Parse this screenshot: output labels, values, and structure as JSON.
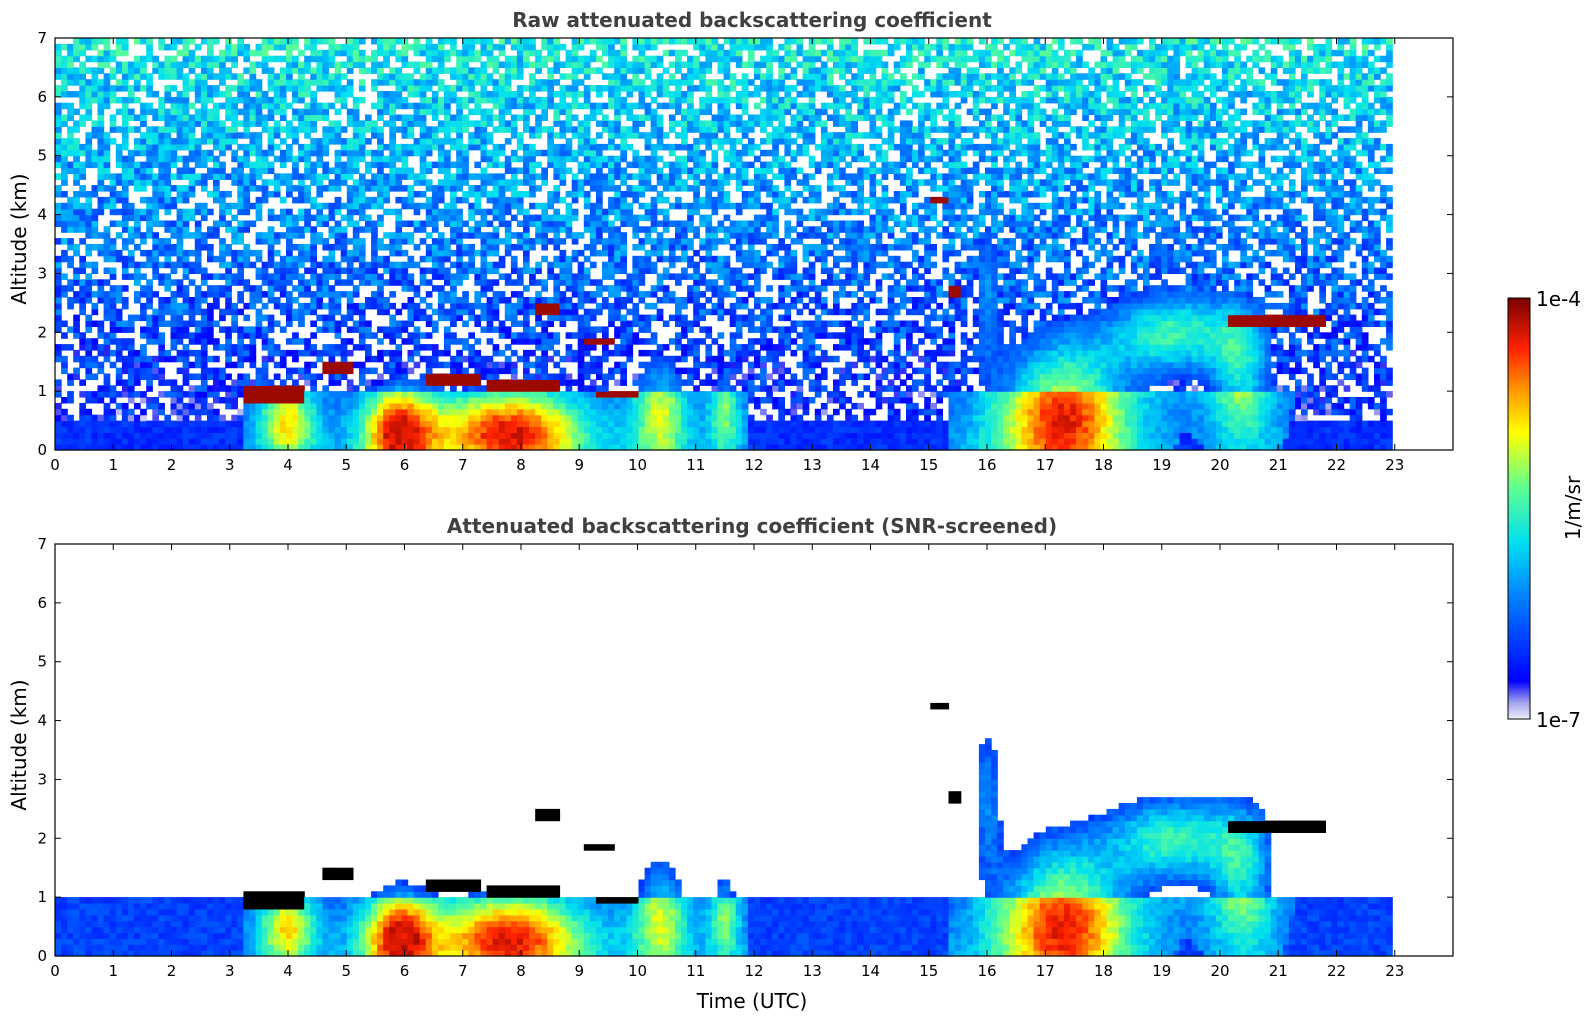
{
  "chart_data": [
    {
      "type": "heatmap",
      "title": "Raw attenuated backscattering coefficient",
      "xlabel": "",
      "ylabel": "Altitude (km)",
      "xlim": [
        0,
        24
      ],
      "ylim": [
        0,
        7
      ],
      "x_ticks": [
        0,
        1,
        2,
        3,
        4,
        5,
        6,
        7,
        8,
        9,
        10,
        11,
        12,
        13,
        14,
        15,
        16,
        17,
        18,
        19,
        20,
        21,
        22,
        23
      ],
      "y_ticks": [
        0,
        1,
        2,
        3,
        4,
        5,
        6,
        7
      ],
      "data_extent_hours": [
        0,
        22.95
      ],
      "screened": false,
      "features": [
        {
          "kind": "cloud",
          "x": [
            3.2,
            4.3
          ],
          "y": [
            0.85,
            1.05
          ],
          "value": 0.0001
        },
        {
          "kind": "cloud",
          "x": [
            4.6,
            5.1
          ],
          "y": [
            1.3,
            1.5
          ],
          "value": 0.0001
        },
        {
          "kind": "cloud",
          "x": [
            6.4,
            7.3
          ],
          "y": [
            1.1,
            1.25
          ],
          "value": 0.0001
        },
        {
          "kind": "cloud",
          "x": [
            7.4,
            8.7
          ],
          "y": [
            1.05,
            1.15
          ],
          "value": 0.0001
        },
        {
          "kind": "cloud",
          "x": [
            8.2,
            8.7
          ],
          "y": [
            2.3,
            2.5
          ],
          "value": 0.0001
        },
        {
          "kind": "cloud",
          "x": [
            9.1,
            9.6
          ],
          "y": [
            1.8,
            1.9
          ],
          "value": 0.0001
        },
        {
          "kind": "cloud",
          "x": [
            9.3,
            10.0
          ],
          "y": [
            0.9,
            1.0
          ],
          "value": 0.0001
        },
        {
          "kind": "cloud",
          "x": [
            15.0,
            15.3
          ],
          "y": [
            4.2,
            4.3
          ],
          "value": 0.0001
        },
        {
          "kind": "cloud",
          "x": [
            15.35,
            15.5
          ],
          "y": [
            2.6,
            2.8
          ],
          "value": 0.0001
        },
        {
          "kind": "cloud",
          "x": [
            20.1,
            21.8
          ],
          "y": [
            2.1,
            2.3
          ],
          "value": 0.0001
        },
        {
          "kind": "aerosol",
          "x": [
            16.0,
            18.5
          ],
          "y": [
            0.0,
            2.2
          ],
          "value": 5e-06
        },
        {
          "kind": "aerosol",
          "x": [
            18.5,
            20.2
          ],
          "y": [
            1.3,
            2.5
          ],
          "value": 8e-06
        }
      ]
    },
    {
      "type": "heatmap",
      "title": "Attenuated backscattering coefficient (SNR-screened)",
      "xlabel": "Time (UTC)",
      "ylabel": "Altitude (km)",
      "xlim": [
        0,
        24
      ],
      "ylim": [
        0,
        7
      ],
      "x_ticks": [
        0,
        1,
        2,
        3,
        4,
        5,
        6,
        7,
        8,
        9,
        10,
        11,
        12,
        13,
        14,
        15,
        16,
        17,
        18,
        19,
        20,
        21,
        22,
        23
      ],
      "y_ticks": [
        0,
        1,
        2,
        3,
        4,
        5,
        6,
        7
      ],
      "data_extent_hours": [
        0,
        22.95
      ],
      "screened": true
    }
  ],
  "colorbar": {
    "label": "1/m/sr",
    "min_label": "1e-7",
    "max_label": "1e-4",
    "min": 1e-07,
    "max": 0.0001,
    "scale": "log",
    "colormap": "jet"
  },
  "colors": {
    "title": "#404040",
    "frame": "#000000",
    "background": "#ffffff"
  }
}
